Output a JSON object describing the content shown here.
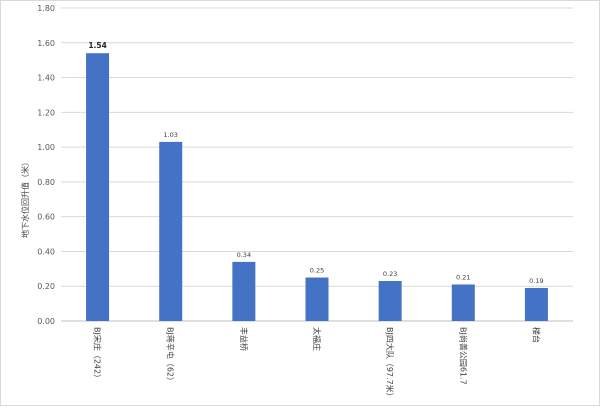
{
  "chart_data": {
    "type": "bar",
    "title": "",
    "xlabel": "",
    "ylabel": "地下水位回升值（米）",
    "ylim": [
      0,
      1.8
    ],
    "yticks": [
      "0.00",
      "0.20",
      "0.40",
      "0.60",
      "0.80",
      "1.00",
      "1.20",
      "1.40",
      "1.60",
      "1.80"
    ],
    "grid": true,
    "legend": "none",
    "bar_color": "#4472c4",
    "categories": [
      "BJ宋庄（242）",
      "BJ蒋辛屯（62）",
      "丰益桥",
      "太福庄",
      "BJ四大队（97.7米）",
      "BJ尚善公园61.7",
      "楼台"
    ],
    "values": [
      1.54,
      1.03,
      0.34,
      0.25,
      0.23,
      0.21,
      0.19
    ],
    "value_labels": [
      "1.54",
      "1.03",
      "0.34",
      "0.25",
      "0.23",
      "0.21",
      "0.19"
    ]
  }
}
